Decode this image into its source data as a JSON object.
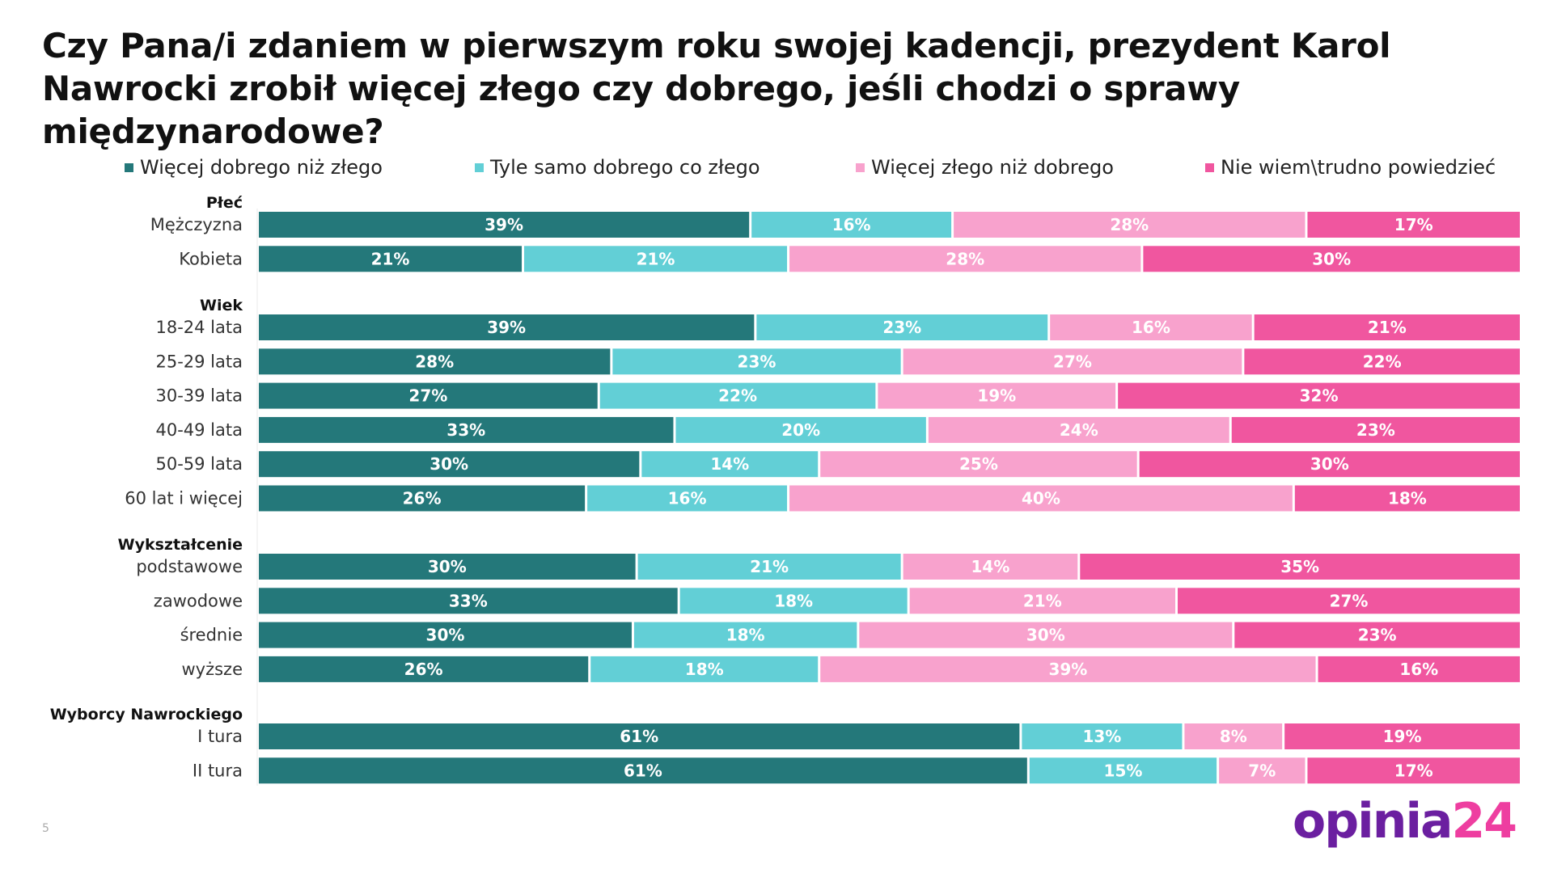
{
  "title": "Czy Pana/i zdaniem w pierwszym roku swojej kadencji, prezydent Karol Nawrocki zrobił więcej złego czy dobrego, jeśli chodzi o sprawy międzynarodowe?",
  "page_number": "5",
  "logo": {
    "part1": "opinia",
    "part2": "24",
    "color1": "#6b1fa0",
    "color2": "#ee3ea0"
  },
  "colors": {
    "c1": "#24787a",
    "c2": "#62cfd6",
    "c3": "#f8a2cd",
    "c4": "#f0569f"
  },
  "legend": [
    {
      "label": "Więcej dobrego niż złego",
      "color": "#24787a"
    },
    {
      "label": "Tyle samo dobrego co złego",
      "color": "#62cfd6"
    },
    {
      "label": "Więcej złego niż dobrego",
      "color": "#f8a2cd"
    },
    {
      "label": "Nie wiem\\trudno powiedzieć",
      "color": "#f0569f"
    }
  ],
  "chart_data": {
    "type": "bar",
    "orientation": "horizontal",
    "stacked": true,
    "value_format": "percent",
    "legend_position": "top",
    "series_names": [
      "Więcej dobrego niż złego",
      "Tyle samo dobrego co złego",
      "Więcej złego niż dobrego",
      "Nie wiem\\trudno powiedzieć"
    ],
    "groups": [
      {
        "header": "Płeć",
        "rows": [
          {
            "label": "Mężczyzna",
            "values": [
              39,
              16,
              28,
              17
            ]
          },
          {
            "label": "Kobieta",
            "values": [
              21,
              21,
              28,
              30
            ]
          }
        ]
      },
      {
        "header": "Wiek",
        "rows": [
          {
            "label": "18-24 lata",
            "values": [
              39,
              23,
              16,
              21
            ]
          },
          {
            "label": "25-29 lata",
            "values": [
              28,
              23,
              27,
              22
            ]
          },
          {
            "label": "30-39 lata",
            "values": [
              27,
              22,
              19,
              32
            ]
          },
          {
            "label": "40-49 lata",
            "values": [
              33,
              20,
              24,
              23
            ]
          },
          {
            "label": "50-59 lata",
            "values": [
              30,
              14,
              25,
              30
            ]
          },
          {
            "label": "60 lat i więcej",
            "values": [
              26,
              16,
              40,
              18
            ]
          }
        ]
      },
      {
        "header": "Wykształcenie",
        "rows": [
          {
            "label": "podstawowe",
            "values": [
              30,
              21,
              14,
              35
            ]
          },
          {
            "label": "zawodowe",
            "values": [
              33,
              18,
              21,
              27
            ]
          },
          {
            "label": "średnie",
            "values": [
              30,
              18,
              30,
              23
            ]
          },
          {
            "label": "wyższe",
            "values": [
              26,
              18,
              39,
              16
            ]
          }
        ]
      },
      {
        "header": "Wyborcy Nawrockiego",
        "rows": [
          {
            "label": "I tura",
            "values": [
              61,
              13,
              8,
              19
            ]
          },
          {
            "label": "II tura",
            "values": [
              61,
              15,
              7,
              17
            ]
          }
        ]
      }
    ]
  }
}
